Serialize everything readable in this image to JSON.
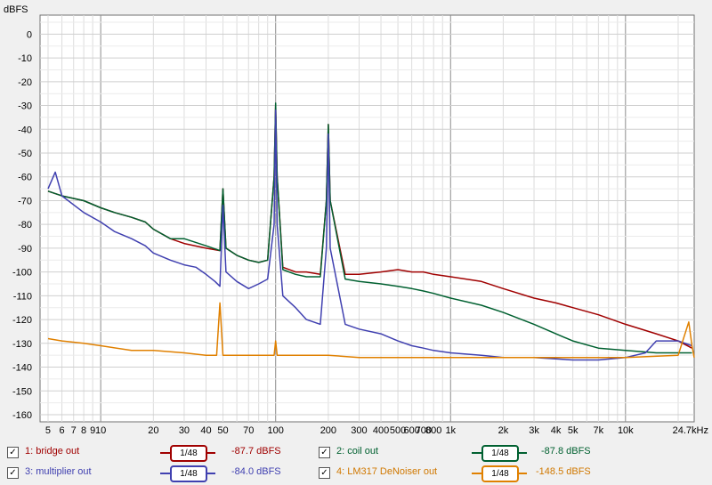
{
  "chart_data": {
    "type": "line",
    "ylabel": "dBFS",
    "xscale": "log",
    "xlim": [
      4.5,
      24700
    ],
    "ylim": [
      -163,
      8
    ],
    "yticks": [
      0,
      -10,
      -20,
      -30,
      -40,
      -50,
      -60,
      -70,
      -80,
      -90,
      -100,
      -110,
      -120,
      -130,
      -140,
      -150,
      -160
    ],
    "xticks": [
      {
        "v": 5,
        "label": "5"
      },
      {
        "v": 6,
        "label": "6"
      },
      {
        "v": 7,
        "label": "7"
      },
      {
        "v": 8,
        "label": "8"
      },
      {
        "v": 9,
        "label": "9"
      },
      {
        "v": 10,
        "label": "10"
      },
      {
        "v": 20,
        "label": "20"
      },
      {
        "v": 30,
        "label": "30"
      },
      {
        "v": 40,
        "label": "40"
      },
      {
        "v": 50,
        "label": "50"
      },
      {
        "v": 70,
        "label": "70"
      },
      {
        "v": 100,
        "label": "100"
      },
      {
        "v": 200,
        "label": "200"
      },
      {
        "v": 300,
        "label": "300"
      },
      {
        "v": 400,
        "label": "400"
      },
      {
        "v": 500,
        "label": "500"
      },
      {
        "v": 600,
        "label": "600"
      },
      {
        "v": 700,
        "label": "700"
      },
      {
        "v": 800,
        "label": "800"
      },
      {
        "v": 1000,
        "label": "1k"
      },
      {
        "v": 2000,
        "label": "2k"
      },
      {
        "v": 3000,
        "label": "3k"
      },
      {
        "v": 4000,
        "label": "4k"
      },
      {
        "v": 5000,
        "label": "5k"
      },
      {
        "v": 7000,
        "label": "7k"
      },
      {
        "v": 10000,
        "label": "10k"
      },
      {
        "v": 24700,
        "label": "24.7kHz"
      }
    ],
    "grid": true,
    "legend_position": "bottom",
    "series": [
      {
        "name": "1: bridge out",
        "color": "#a00000",
        "smoothing": "1/48",
        "level": "-87.7 dBFS",
        "x": [
          5,
          6,
          8,
          10,
          12,
          15,
          18,
          20,
          25,
          30,
          40,
          48,
          50,
          52,
          60,
          70,
          80,
          90,
          98,
          100,
          102,
          110,
          130,
          150,
          180,
          195,
          200,
          205,
          250,
          300,
          400,
          500,
          600,
          700,
          800,
          1000,
          1500,
          2000,
          3000,
          4000,
          5000,
          7000,
          10000,
          15000,
          20000,
          24000
        ],
        "y": [
          -66,
          -68,
          -70,
          -73,
          -75,
          -77,
          -79,
          -82,
          -86,
          -88,
          -90,
          -91,
          -65,
          -90,
          -93,
          -95,
          -96,
          -95,
          -60,
          -30,
          -60,
          -98,
          -100,
          -100,
          -101,
          -70,
          -38,
          -70,
          -101,
          -101,
          -100,
          -99,
          -100,
          -100,
          -101,
          -102,
          -104,
          -107,
          -111,
          -113,
          -115,
          -118,
          -122,
          -126,
          -129,
          -132
        ]
      },
      {
        "name": "2: coil out",
        "color": "#006030",
        "smoothing": "1/48",
        "level": "-87.8 dBFS",
        "x": [
          5,
          6,
          8,
          10,
          12,
          15,
          18,
          20,
          25,
          30,
          40,
          48,
          50,
          52,
          60,
          70,
          80,
          90,
          98,
          100,
          102,
          110,
          130,
          150,
          180,
          195,
          200,
          205,
          250,
          300,
          400,
          500,
          600,
          700,
          800,
          1000,
          1500,
          2000,
          3000,
          4000,
          5000,
          7000,
          10000,
          15000,
          20000,
          24000
        ],
        "y": [
          -66,
          -68,
          -70,
          -73,
          -75,
          -77,
          -79,
          -82,
          -86,
          -86,
          -89,
          -91,
          -65,
          -90,
          -93,
          -95,
          -96,
          -95,
          -60,
          -29,
          -60,
          -99,
          -101,
          -102,
          -102,
          -70,
          -38,
          -70,
          -103,
          -104,
          -105,
          -106,
          -107,
          -108,
          -109,
          -111,
          -114,
          -117,
          -122,
          -126,
          -129,
          -132,
          -133,
          -134,
          -134,
          -134
        ]
      },
      {
        "name": "3: multiplier out",
        "color": "#4040b0",
        "smoothing": "1/48",
        "level": "-84.0 dBFS",
        "x": [
          5,
          5.5,
          6,
          8,
          10,
          12,
          15,
          18,
          20,
          25,
          30,
          35,
          40,
          45,
          48,
          50,
          52,
          60,
          70,
          80,
          90,
          98,
          100,
          102,
          110,
          130,
          150,
          180,
          195,
          200,
          205,
          250,
          300,
          400,
          500,
          600,
          700,
          800,
          1000,
          1500,
          2000,
          3000,
          5000,
          7000,
          10000,
          13000,
          15000,
          20000,
          24000
        ],
        "y": [
          -65,
          -58,
          -68,
          -75,
          -79,
          -83,
          -86,
          -89,
          -92,
          -95,
          -97,
          -98,
          -101,
          -104,
          -106,
          -72,
          -100,
          -104,
          -107,
          -105,
          -103,
          -80,
          -32,
          -80,
          -110,
          -115,
          -120,
          -122,
          -90,
          -42,
          -90,
          -122,
          -124,
          -126,
          -129,
          -131,
          -132,
          -133,
          -134,
          -135,
          -136,
          -136,
          -137,
          -137,
          -136,
          -134,
          -129,
          -129,
          -131
        ]
      },
      {
        "name": "4: LM317 DeNoiser out",
        "color": "#e08000",
        "smoothing": "1/48",
        "level": "-148.5 dBFS",
        "x": [
          5,
          6,
          8,
          10,
          15,
          20,
          30,
          40,
          46,
          48,
          50,
          60,
          80,
          98,
          100,
          102,
          150,
          200,
          300,
          500,
          1000,
          2000,
          5000,
          10000,
          20000,
          23000,
          24000,
          24700
        ],
        "y": [
          -128,
          -129,
          -130,
          -131,
          -133,
          -133,
          -134,
          -135,
          -135,
          -113,
          -135,
          -135,
          -135,
          -135,
          -129,
          -135,
          -135,
          -135,
          -136,
          -136,
          -136,
          -136,
          -136,
          -136,
          -135,
          -121,
          -131,
          -136
        ]
      }
    ]
  },
  "legend": {
    "check_mark": "✓"
  }
}
